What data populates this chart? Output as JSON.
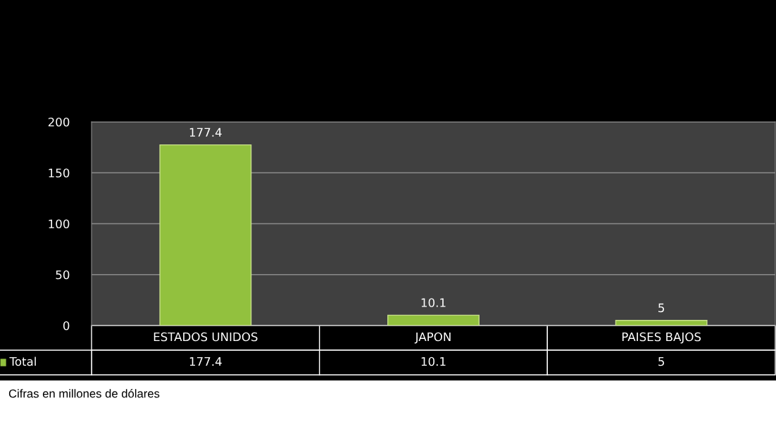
{
  "chart_data": {
    "type": "bar",
    "categories": [
      "ESTADOS UNIDOS",
      "JAPON",
      "PAISES BAJOS"
    ],
    "series": [
      {
        "name": "Total",
        "color": "#92c13e",
        "values": [
          177.4,
          10.1,
          5
        ],
        "value_labels": [
          "177.4",
          "10.1",
          "5"
        ]
      }
    ],
    "ylim": [
      0,
      200
    ],
    "yticks": [
      0,
      50,
      100,
      150,
      200
    ],
    "grid": "y",
    "data_labels": true,
    "legend": "bottom left",
    "annotations": [
      "Cifras en millones de dólares",
      "177.4",
      "10.1",
      "5"
    ]
  }
}
